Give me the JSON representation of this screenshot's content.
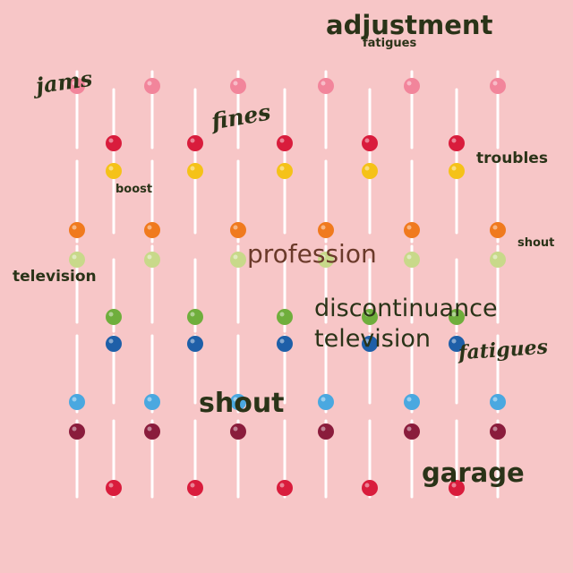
{
  "background_color": "#f7c6c7",
  "stick_color": "#ffffff",
  "candy_colors": {
    "pink": "#f2859b",
    "red": "#d91c3c",
    "yellow": "#f5c218",
    "orange": "#f07a1e",
    "pale_green": "#c8d98a",
    "green": "#6fae3c",
    "blue": "#1e5fa8",
    "sky": "#4aa8e0",
    "maroon": "#8a1c3c"
  },
  "text_color": "#2a3318",
  "text_color_soft": "#6b3a2a",
  "words": {
    "adjustment": "adjustment",
    "fatigues_top": "fatigues",
    "jams": "jams",
    "fines": "fines",
    "troubles": "troubles",
    "boost": "boost",
    "shout_small": "shout",
    "profession": "profession",
    "television_left": "television",
    "discontinuance": "discontinuance",
    "television_center": "television",
    "fatigues_right": "fatigues",
    "shout_large": "shout",
    "garage": "garage"
  }
}
